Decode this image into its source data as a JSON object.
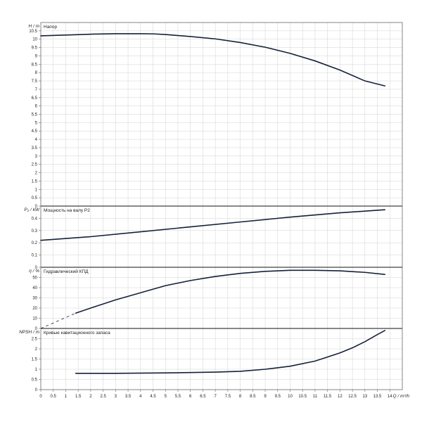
{
  "chart_data": [
    {
      "type": "line",
      "id": "head",
      "ylabel": "H / m",
      "legend": "Напор",
      "xlim": [
        0,
        14.5
      ],
      "ylim": [
        0,
        11
      ],
      "yticks": [
        0,
        0.5,
        1,
        1.5,
        2,
        2.5,
        3,
        3.5,
        4,
        4.5,
        5,
        5.5,
        6,
        6.5,
        7,
        7.5,
        8,
        8.5,
        9,
        9.5,
        10,
        10.5
      ],
      "ytick_labels": [
        "0",
        "0.5",
        "1",
        "1.5",
        "2",
        "2.5",
        "3",
        "3.5",
        "4",
        "4.5",
        "5",
        "5.5",
        "6",
        "6.5",
        "7",
        "7.5",
        "8",
        "8.5",
        "9",
        "9.5",
        "10",
        "10.5"
      ],
      "series": [
        {
          "x": [
            0,
            1,
            2,
            3,
            4,
            4.5,
            5,
            6,
            7,
            8,
            9,
            10,
            11,
            12,
            13,
            13.8
          ],
          "y": [
            10.2,
            10.25,
            10.3,
            10.33,
            10.33,
            10.32,
            10.28,
            10.16,
            10.02,
            9.8,
            9.52,
            9.15,
            8.7,
            8.15,
            7.5,
            7.2
          ]
        }
      ]
    },
    {
      "type": "line",
      "id": "power",
      "ylabel": "P₂ / kW",
      "legend": "Мощность на валу P2",
      "xlim": [
        0,
        14.5
      ],
      "ylim": [
        0,
        0.5
      ],
      "yticks": [
        0,
        0.1,
        0.2,
        0.3,
        0.4
      ],
      "ytick_labels": [
        "0",
        "0.1",
        "0.2",
        "0.3",
        "0.4"
      ],
      "series": [
        {
          "x": [
            0,
            2,
            4,
            6,
            8,
            10,
            12,
            13.8
          ],
          "y": [
            0.22,
            0.25,
            0.29,
            0.33,
            0.37,
            0.41,
            0.445,
            0.47
          ]
        }
      ]
    },
    {
      "type": "line",
      "id": "efficiency",
      "ylabel": "η / %",
      "legend": "Гидравлический КПД",
      "xlim": [
        0,
        14.5
      ],
      "ylim": [
        0,
        60
      ],
      "yticks": [
        0,
        10,
        20,
        30,
        40,
        50
      ],
      "ytick_labels": [
        "0",
        "10",
        "20",
        "30",
        "40",
        "50"
      ],
      "series": [
        {
          "x": [
            1.4,
            2,
            3,
            4,
            5,
            6,
            7,
            8,
            9,
            10,
            11,
            12,
            13,
            13.8
          ],
          "y": [
            15,
            20,
            28,
            35,
            42,
            47,
            51,
            54,
            56,
            57,
            57,
            56.5,
            55,
            53
          ]
        }
      ],
      "extrapolation": {
        "x": [
          0,
          1.4
        ],
        "y": [
          0,
          15
        ]
      }
    },
    {
      "type": "line",
      "id": "npsh",
      "ylabel": "NPSH / m",
      "legend": "Кривые кавитационного запаса",
      "xlim": [
        0,
        14.5
      ],
      "ylim": [
        0,
        3
      ],
      "yticks": [
        0,
        0.5,
        1,
        1.5,
        2,
        2.5
      ],
      "ytick_labels": [
        "0",
        "0.5",
        "1",
        "1.5",
        "2",
        "2.5"
      ],
      "series": [
        {
          "x": [
            1.4,
            3,
            5,
            7,
            8,
            9,
            10,
            11,
            12,
            12.5,
            13,
            13.5,
            13.8
          ],
          "y": [
            0.8,
            0.8,
            0.82,
            0.86,
            0.9,
            1.0,
            1.15,
            1.4,
            1.8,
            2.05,
            2.35,
            2.7,
            2.9
          ]
        }
      ]
    }
  ],
  "x_axis": {
    "label": "Q / m³/h",
    "ticks": [
      0,
      0.5,
      1,
      1.5,
      2,
      2.5,
      3,
      3.5,
      4,
      4.5,
      5,
      5.5,
      6,
      6.5,
      7,
      7.5,
      8,
      8.5,
      9,
      9.5,
      10,
      10.5,
      11,
      11.5,
      12,
      12.5,
      13,
      13.5,
      14
    ],
    "tick_labels": [
      "0",
      "0.5",
      "1",
      "1.5",
      "2",
      "2.5",
      "3",
      "3.5",
      "4",
      "4.5",
      "5",
      "5.5",
      "6",
      "6.5",
      "7",
      "7.5",
      "8",
      "8.5",
      "9",
      "9.5",
      "10",
      "10.5",
      "11",
      "11.5",
      "12",
      "12.5",
      "13",
      "13.5",
      "14"
    ],
    "grid": true
  },
  "colors": {
    "curve": "#15213a",
    "grid": "#d2d2d2",
    "frame": "#666666",
    "text": "#222222"
  }
}
